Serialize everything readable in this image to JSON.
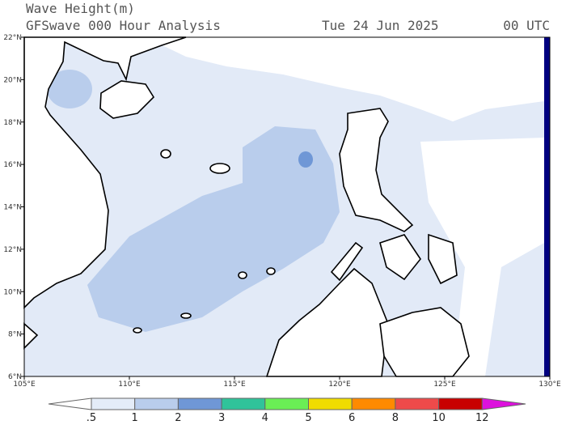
{
  "header": {
    "title": "Wave Height(m)",
    "subtitle": "GFSwave 000 Hour Analysis",
    "date": "Tue 24 Jun 2025",
    "time": "00 UTC"
  },
  "map": {
    "lat_labels": [
      "6°N",
      "8°N",
      "10°N",
      "12°N",
      "14°N",
      "16°N",
      "18°N",
      "20°N",
      "22°N"
    ],
    "lon_labels": [
      "105°E",
      "110°E",
      "115°E",
      "120°E",
      "125°E",
      "130°E"
    ]
  },
  "colorbar": {
    "labels": [
      ".5",
      "1",
      "2",
      "3",
      "4",
      "5",
      "6",
      "8",
      "10",
      "12"
    ],
    "colors": [
      "#ffffff",
      "#e4ecf8",
      "#b9cdec",
      "#6f97d6",
      "#30c39a",
      "#6aee55",
      "#f0dc00",
      "#ff8a00",
      "#ee4a4a",
      "#c80000",
      "#dd11dd"
    ]
  }
}
